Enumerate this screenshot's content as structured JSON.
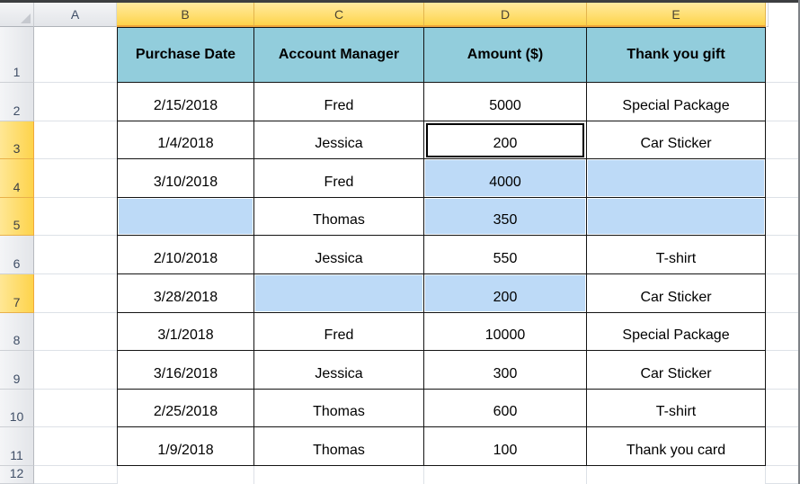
{
  "sheet": {
    "column_letters": [
      "A",
      "B",
      "C",
      "D",
      "E"
    ],
    "selected_column_letters": [
      "B",
      "C",
      "D",
      "E"
    ],
    "row_numbers": [
      "1",
      "2",
      "3",
      "4",
      "5",
      "6",
      "7",
      "8",
      "9",
      "10",
      "11",
      "12"
    ],
    "selected_row_numbers": [
      "3",
      "4",
      "5",
      "7"
    ],
    "active_cell": "D3",
    "selected_blue_cells": [
      "B5",
      "C7",
      "D4",
      "D5",
      "D7",
      "E4",
      "E5"
    ]
  },
  "table": {
    "columns": [
      "B",
      "C",
      "D",
      "E"
    ],
    "headers": [
      "Purchase Date",
      "Account Manager",
      "Amount ($)",
      "Thank you gift"
    ],
    "rows": [
      [
        "2/15/2018",
        "Fred",
        "5000",
        "Special Package"
      ],
      [
        "1/4/2018",
        "Jessica",
        "200",
        "Car Sticker"
      ],
      [
        "3/10/2018",
        "Fred",
        "4000",
        ""
      ],
      [
        "",
        "Thomas",
        "350",
        ""
      ],
      [
        "2/10/2018",
        "Jessica",
        "550",
        "T-shirt"
      ],
      [
        "3/28/2018",
        "",
        "200",
        "Car Sticker"
      ],
      [
        "3/1/2018",
        "Fred",
        "10000",
        "Special Package"
      ],
      [
        "3/16/2018",
        "Jessica",
        "300",
        "Car Sticker"
      ],
      [
        "2/25/2018",
        "Thomas",
        "600",
        "T-shirt"
      ],
      [
        "1/9/2018",
        "Thomas",
        "100",
        "Thank you card"
      ]
    ]
  },
  "colors": {
    "teal": "#92CDDC",
    "selection_blue": "#BDDAF7",
    "header_gold_light": "#FFE99F",
    "header_gold_dark": "#FDD34B",
    "header_gold_border": "#F0A73C",
    "header_gray_light": "#F4F5F7",
    "header_gray_dark": "#E3E5E9",
    "header_label": "#3F4E66",
    "gridline": "#DDE1E7",
    "table_border": "#141414"
  }
}
